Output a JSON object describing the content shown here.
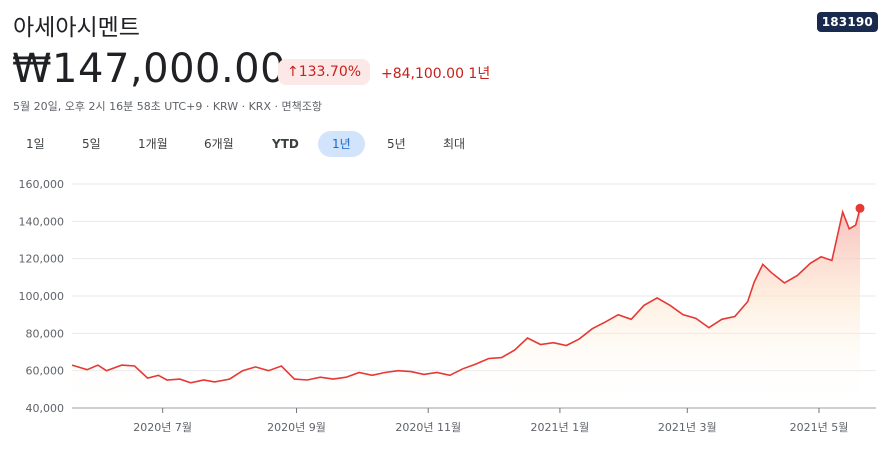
{
  "stock": {
    "name": "아세아시멘트",
    "ticker": "183190",
    "price": "₩147,000.00",
    "change_pct": "133.70%",
    "change_abs": "+84,100.00 1년",
    "meta": "5월 20일, 오후 2시 16분 58초 UTC+9 · KRW · KRX · 면책조항"
  },
  "ranges": [
    "1일",
    "5일",
    "1개월",
    "6개월",
    "YTD",
    "1년",
    "5년",
    "최대"
  ],
  "selected_range": "1년",
  "colors": {
    "line": "#e53935",
    "badge_bg": "#fce8e6",
    "badge_text": "#c5221f",
    "active_range": "#d2e3fc"
  },
  "chart_data": {
    "type": "area",
    "y_ticks": [
      "160,000",
      "140,000",
      "120,000",
      "100,000",
      "80,000",
      "60,000",
      "40,000"
    ],
    "ylim": [
      40000,
      160000
    ],
    "x_ticks": [
      "2020년 7월",
      "2020년 9월",
      "2020년 11월",
      "2021년 1월",
      "2021년 3월",
      "2021년 5월"
    ],
    "x_tick_dates": [
      "2020-07-01",
      "2020-09-01",
      "2020-11-01",
      "2021-01-01",
      "2021-03-01",
      "2021-05-01"
    ],
    "series": [
      {
        "points": [
          [
            "2020-05-20",
            63000
          ],
          [
            "2020-05-27",
            60500
          ],
          [
            "2020-06-01",
            63000
          ],
          [
            "2020-06-05",
            60000
          ],
          [
            "2020-06-12",
            63000
          ],
          [
            "2020-06-18",
            62500
          ],
          [
            "2020-06-24",
            56000
          ],
          [
            "2020-06-29",
            57500
          ],
          [
            "2020-07-03",
            55000
          ],
          [
            "2020-07-09",
            55500
          ],
          [
            "2020-07-14",
            53500
          ],
          [
            "2020-07-20",
            55000
          ],
          [
            "2020-07-25",
            54000
          ],
          [
            "2020-08-01",
            55500
          ],
          [
            "2020-08-07",
            60000
          ],
          [
            "2020-08-13",
            62000
          ],
          [
            "2020-08-19",
            60000
          ],
          [
            "2020-08-25",
            62500
          ],
          [
            "2020-08-31",
            55500
          ],
          [
            "2020-09-06",
            55000
          ],
          [
            "2020-09-12",
            56500
          ],
          [
            "2020-09-18",
            55500
          ],
          [
            "2020-09-24",
            56500
          ],
          [
            "2020-09-30",
            59000
          ],
          [
            "2020-10-06",
            57500
          ],
          [
            "2020-10-12",
            59000
          ],
          [
            "2020-10-18",
            60000
          ],
          [
            "2020-10-24",
            59500
          ],
          [
            "2020-10-30",
            58000
          ],
          [
            "2020-11-05",
            59000
          ],
          [
            "2020-11-11",
            57500
          ],
          [
            "2020-11-17",
            61000
          ],
          [
            "2020-11-23",
            63500
          ],
          [
            "2020-11-29",
            66500
          ],
          [
            "2020-12-05",
            67000
          ],
          [
            "2020-12-11",
            71000
          ],
          [
            "2020-12-17",
            77500
          ],
          [
            "2020-12-23",
            74000
          ],
          [
            "2020-12-29",
            75000
          ],
          [
            "2021-01-04",
            73500
          ],
          [
            "2021-01-10",
            77000
          ],
          [
            "2021-01-16",
            82500
          ],
          [
            "2021-01-22",
            86000
          ],
          [
            "2021-01-28",
            90000
          ],
          [
            "2021-02-03",
            87500
          ],
          [
            "2021-02-09",
            95000
          ],
          [
            "2021-02-15",
            99000
          ],
          [
            "2021-02-21",
            95000
          ],
          [
            "2021-02-27",
            90000
          ],
          [
            "2021-03-05",
            88000
          ],
          [
            "2021-03-11",
            83000
          ],
          [
            "2021-03-17",
            87500
          ],
          [
            "2021-03-23",
            89000
          ],
          [
            "2021-03-29",
            97000
          ],
          [
            "2021-04-01",
            107500
          ],
          [
            "2021-04-05",
            117000
          ],
          [
            "2021-04-09",
            112500
          ],
          [
            "2021-04-15",
            107000
          ],
          [
            "2021-04-21",
            111000
          ],
          [
            "2021-04-27",
            117500
          ],
          [
            "2021-05-02",
            121000
          ],
          [
            "2021-05-07",
            119000
          ],
          [
            "2021-05-12",
            145000
          ],
          [
            "2021-05-15",
            136000
          ],
          [
            "2021-05-18",
            138000
          ],
          [
            "2021-05-20",
            147000
          ]
        ]
      }
    ],
    "grid": "horizontal",
    "legend": "none"
  }
}
